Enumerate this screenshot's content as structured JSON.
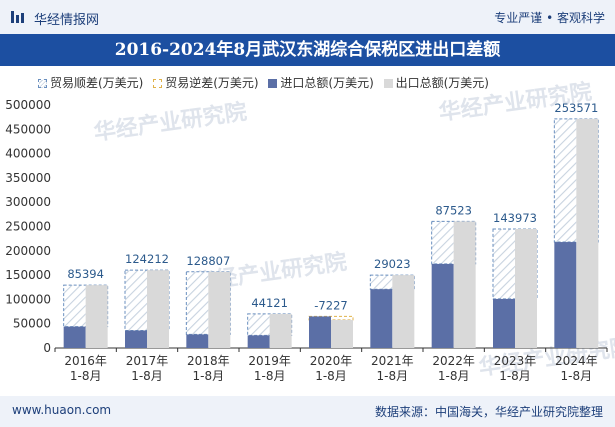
{
  "header": {
    "brand": "华经情报网",
    "slogan": "专业严谨 • 客观科学"
  },
  "footer": {
    "site": "www.huaon.com",
    "source": "数据来源：中国海关，华经产业研究院整理"
  },
  "watermark": "华经产业研究院",
  "colors": {
    "import": "#5b6fa6",
    "export": "#d9d9d9",
    "deficit_stroke": "#6a8fbf",
    "surplus_stroke": "#e0b24a",
    "label": "#2c5a8c",
    "title_bg": "#1c4fa1"
  },
  "chart_data": {
    "type": "bar",
    "title": "2016-2024年8月武汉东湖综合保税区进出口差额",
    "legend": [
      "贸易顺差(万美元)",
      "贸易逆差(万美元)",
      "进口总额(万美元)",
      "出口总额(万美元)"
    ],
    "categories": [
      "2016年\n1-8月",
      "2017年\n1-8月",
      "2018年\n1-8月",
      "2019年\n1-8月",
      "2020年\n1-8月",
      "2021年\n1-8月",
      "2022年\n1-8月",
      "2023年\n1-8月",
      "2024年\n1-8月"
    ],
    "series": [
      {
        "name": "进口总额(万美元)",
        "values": [
          44000,
          36000,
          28000,
          26000,
          65000,
          121000,
          173000,
          101000,
          218000
        ]
      },
      {
        "name": "出口总额(万美元)",
        "values": [
          129394,
          160212,
          156807,
          70121,
          57773,
          150023,
          260523,
          244973,
          471571
        ]
      }
    ],
    "balance_labels": [
      85394,
      124212,
      128807,
      44121,
      -7227,
      29023,
      87523,
      143973,
      253571
    ],
    "ylim": [
      0,
      500000
    ],
    "yticks": [
      0,
      50000,
      100000,
      150000,
      200000,
      250000,
      300000,
      350000,
      400000,
      450000,
      500000
    ]
  }
}
